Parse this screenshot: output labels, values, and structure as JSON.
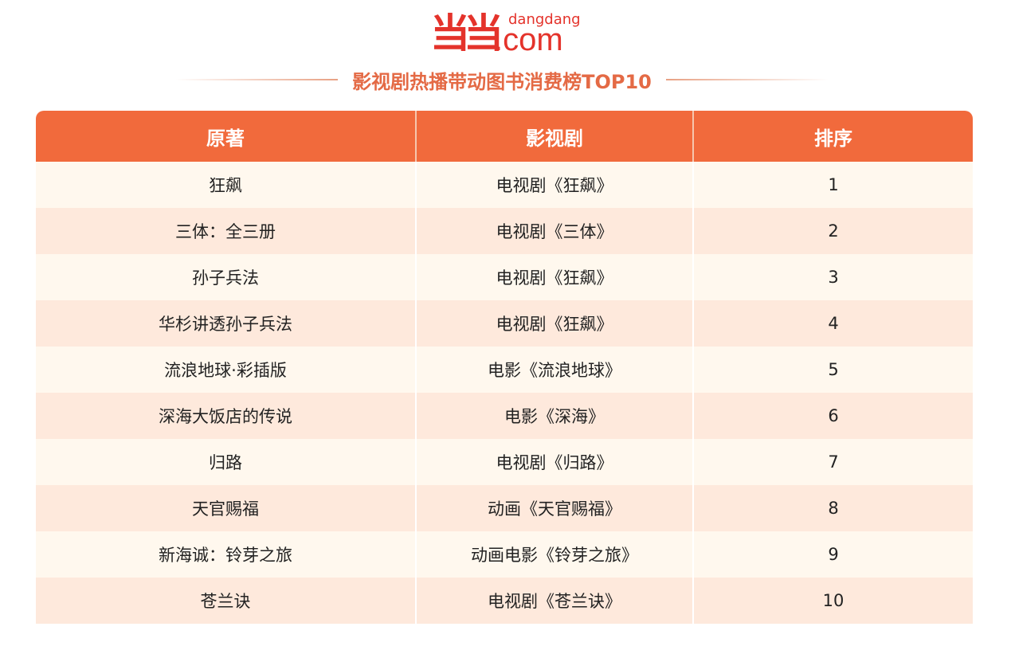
{
  "logo": {
    "mark": "当当",
    "small": "dangdang",
    "com": ".com"
  },
  "title": "影视剧热播带动图书消费榜TOP10",
  "colors": {
    "header": "#f16a3c",
    "title": "#e46a45",
    "row_odd": "#fff8ee",
    "row_even": "#fee9dc",
    "logo": "#e4332b"
  },
  "table": {
    "headers": [
      "原著",
      "影视剧",
      "排序"
    ],
    "rows": [
      [
        "狂飙",
        "电视剧《狂飙》",
        "1"
      ],
      [
        "三体：全三册",
        "电视剧《三体》",
        "2"
      ],
      [
        "孙子兵法",
        "电视剧《狂飙》",
        "3"
      ],
      [
        "华杉讲透孙子兵法",
        "电视剧《狂飙》",
        "4"
      ],
      [
        "流浪地球·彩插版",
        "电影《流浪地球》",
        "5"
      ],
      [
        "深海大饭店的传说",
        "电影《深海》",
        "6"
      ],
      [
        "归路",
        "电视剧《归路》",
        "7"
      ],
      [
        "天官赐福",
        "动画《天官赐福》",
        "8"
      ],
      [
        "新海诚：铃芽之旅",
        "动画电影《铃芽之旅》",
        "9"
      ],
      [
        "苍兰诀",
        "电视剧《苍兰诀》",
        "10"
      ]
    ]
  }
}
